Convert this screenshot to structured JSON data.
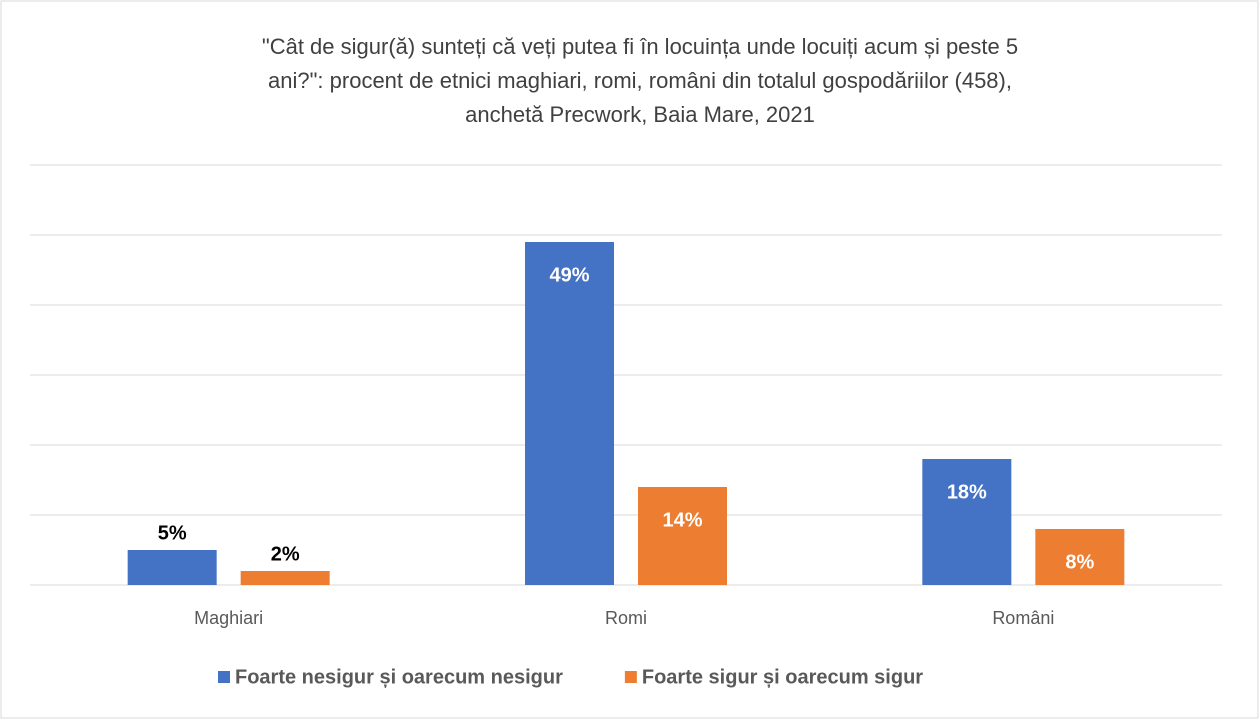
{
  "chart_data": {
    "type": "bar",
    "title": [
      "\"Cât de sigur(ă) sunteți că veți putea fi în locuința unde locuiți acum și peste 5",
      "ani?\": procent de etnici maghiari, romi, români din totalul gospodăriilor (458),",
      "anchetă Precwork, Baia Mare, 2021"
    ],
    "categories": [
      "Maghiari",
      "Romi",
      "Români"
    ],
    "series": [
      {
        "name": "Foarte nesigur și oarecum nesigur",
        "color": "#4472c4",
        "values": [
          5,
          49,
          18
        ],
        "value_labels": [
          "5%",
          "49%",
          "18%"
        ]
      },
      {
        "name": "Foarte sigur și oarecum sigur",
        "color": "#ed7d31",
        "values": [
          2,
          14,
          8
        ],
        "value_labels": [
          "2%",
          "14%",
          "8%"
        ]
      }
    ],
    "ylim": [
      0,
      60
    ],
    "yticks": [
      0,
      10,
      20,
      30,
      40,
      50,
      60
    ],
    "grid": true,
    "legend": "bottom"
  }
}
